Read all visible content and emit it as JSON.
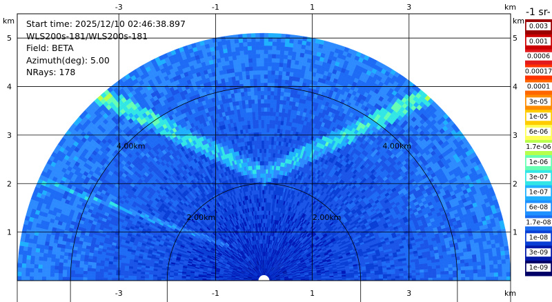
{
  "info": {
    "start_time": "Start time: 2025/12/10 02:46:38.897",
    "instrument": "WLS200s-181/WLS200s-181",
    "field": "Field: BETA",
    "azimuth": "Azimuth(deg): 5.00",
    "nrays": "NRays: 178"
  },
  "colorbar": {
    "title": "-1 sr-",
    "labels": [
      "0.003",
      "0.001",
      "0.0006",
      "0.00017",
      "0.0001",
      "3e-05",
      "1e-05",
      "6e-06",
      "1.7e-06",
      "1e-06",
      "3e-07",
      "1e-07",
      "6e-08",
      "1.7e-08",
      "1e-08",
      "3e-09",
      "1e-09"
    ]
  },
  "chart_data": {
    "type": "heatmap",
    "subtype": "RHI radar scan (range-height indicator)",
    "field": "BETA",
    "x_unit": "km",
    "y_unit": "km",
    "xlim": [
      -5.1,
      5.1
    ],
    "ylim": [
      0,
      5.5
    ],
    "x_ticks": [
      -3,
      -1,
      1,
      3
    ],
    "y_ticks": [
      1,
      2,
      3,
      4,
      5
    ],
    "x_tick_labels": [
      "-3",
      "-1",
      "1",
      "3"
    ],
    "y_tick_labels": [
      "1",
      "2",
      "3",
      "4",
      "5"
    ],
    "axis_unit_labels": [
      "km",
      "km",
      "km",
      "km"
    ],
    "max_range_km": 5.1,
    "range_rings_km": [
      2,
      4
    ],
    "ring_labels": [
      "2.00km",
      "2.00km",
      "4.00km",
      "4.00km"
    ],
    "grid": true,
    "features": [
      {
        "name": "aerosol layer",
        "vertex_x_km": 0,
        "vertex_y_km": 2.3,
        "edge_y_km": 3.9
      },
      {
        "name": "sloped streak",
        "x_km": [
          -5.0,
          -0.7
        ],
        "y_km": [
          2.2,
          0.7
        ]
      }
    ],
    "colors": [
      "#9b0000",
      "#cc0000",
      "#e31a1c",
      "#ff3300",
      "#ff6600",
      "#ff8c00",
      "#ffcc00",
      "#ffff55",
      "#b8ff4d",
      "#66ffb3",
      "#33e6e6",
      "#1fb0ff",
      "#1e90ff",
      "#1a6cf0",
      "#0a3fd6",
      "#0019a8",
      "#000066"
    ]
  }
}
